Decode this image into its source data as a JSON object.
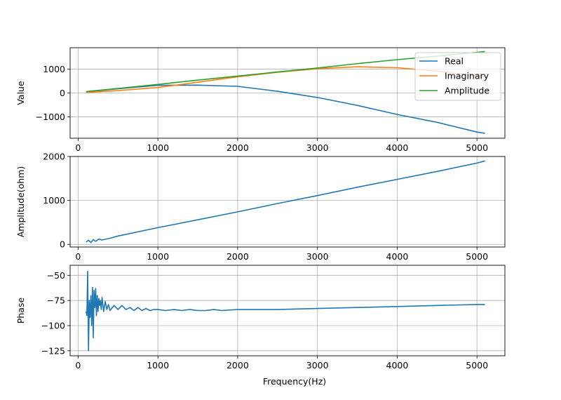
{
  "chart_data": [
    {
      "type": "line",
      "ylabel": "Value",
      "xlim": [
        -100,
        5350
      ],
      "ylim": [
        -1900,
        1900
      ],
      "xticks": [
        {
          "value": 0,
          "label": "0"
        },
        {
          "value": 1000,
          "label": "1000"
        },
        {
          "value": 2000,
          "label": "2000"
        },
        {
          "value": 3000,
          "label": "3000"
        },
        {
          "value": 4000,
          "label": "4000"
        },
        {
          "value": 5000,
          "label": "5000"
        }
      ],
      "yticks": [
        {
          "value": -1000,
          "label": "−1000"
        },
        {
          "value": 0,
          "label": "0"
        },
        {
          "value": 1000,
          "label": "1000"
        }
      ],
      "grid": true,
      "legend": "upper-right",
      "series": [
        {
          "name": "Real",
          "color": "#1f77b4",
          "x": [
            100,
            500,
            1000,
            1500,
            2000,
            2500,
            3000,
            3500,
            4000,
            4500,
            5000,
            5100
          ],
          "y": [
            50,
            180,
            320,
            330,
            280,
            70,
            -190,
            -520,
            -900,
            -1230,
            -1640,
            -1690
          ]
        },
        {
          "name": "Imaginary",
          "color": "#ff7f0e",
          "x": [
            100,
            500,
            1000,
            1500,
            2000,
            2500,
            3000,
            3500,
            4000,
            4500,
            5000,
            5100
          ],
          "y": [
            20,
            100,
            230,
            450,
            680,
            870,
            1020,
            1100,
            1060,
            920,
            720,
            680
          ]
        },
        {
          "name": "Amplitude",
          "color": "#2ca02c",
          "x": [
            100,
            500,
            1000,
            1500,
            2000,
            2500,
            3000,
            3500,
            4000,
            4500,
            5000,
            5100
          ],
          "y": [
            60,
            190,
            360,
            540,
            710,
            880,
            1050,
            1230,
            1400,
            1550,
            1710,
            1740
          ]
        }
      ]
    },
    {
      "type": "line",
      "ylabel": "Amplitude(ohm)",
      "xlim": [
        -100,
        5350
      ],
      "ylim": [
        -60,
        2000
      ],
      "xticks": [
        {
          "value": 0,
          "label": "0"
        },
        {
          "value": 1000,
          "label": "1000"
        },
        {
          "value": 2000,
          "label": "2000"
        },
        {
          "value": 3000,
          "label": "3000"
        },
        {
          "value": 4000,
          "label": "4000"
        },
        {
          "value": 5000,
          "label": "5000"
        }
      ],
      "yticks": [
        {
          "value": 0,
          "label": "0"
        },
        {
          "value": 1000,
          "label": "1000"
        },
        {
          "value": 2000,
          "label": "2000"
        }
      ],
      "grid": true,
      "series": [
        {
          "color": "#1f77b4",
          "x": [
            100,
            130,
            160,
            190,
            220,
            260,
            300,
            400,
            500,
            1000,
            1500,
            2000,
            2500,
            3000,
            3500,
            4000,
            4500,
            5000,
            5100
          ],
          "y": [
            50,
            95,
            40,
            110,
            70,
            120,
            100,
            140,
            190,
            380,
            560,
            740,
            930,
            1110,
            1300,
            1480,
            1660,
            1850,
            1900
          ]
        }
      ]
    },
    {
      "type": "line",
      "xlabel": "Frequency(Hz)",
      "ylabel": "Phase",
      "xlim": [
        -100,
        5350
      ],
      "ylim": [
        -130,
        -40
      ],
      "xticks": [
        {
          "value": 0,
          "label": "0"
        },
        {
          "value": 1000,
          "label": "1000"
        },
        {
          "value": 2000,
          "label": "2000"
        },
        {
          "value": 3000,
          "label": "3000"
        },
        {
          "value": 4000,
          "label": "4000"
        },
        {
          "value": 5000,
          "label": "5000"
        }
      ],
      "yticks": [
        {
          "value": -125,
          "label": "−125"
        },
        {
          "value": -100,
          "label": "−100"
        },
        {
          "value": -75,
          "label": "−75"
        },
        {
          "value": -50,
          "label": "−50"
        }
      ],
      "grid": true,
      "series": [
        {
          "color": "#1f77b4",
          "x": [
            100,
            110,
            120,
            130,
            140,
            150,
            160,
            170,
            180,
            190,
            200,
            210,
            220,
            230,
            240,
            250,
            260,
            270,
            280,
            290,
            300,
            320,
            340,
            360,
            380,
            400,
            450,
            500,
            550,
            600,
            650,
            700,
            750,
            800,
            850,
            900,
            950,
            1000,
            1100,
            1200,
            1300,
            1400,
            1500,
            1600,
            1700,
            1800,
            2000,
            2500,
            3000,
            3500,
            4000,
            4500,
            5000,
            5100
          ],
          "y": [
            -86,
            -90,
            -46,
            -125,
            -75,
            -92,
            -70,
            -100,
            -62,
            -112,
            -65,
            -82,
            -63,
            -90,
            -70,
            -86,
            -73,
            -80,
            -75,
            -84,
            -72,
            -86,
            -76,
            -84,
            -79,
            -85,
            -80,
            -84,
            -80,
            -84,
            -82,
            -85,
            -82,
            -85,
            -83,
            -85,
            -84,
            -84,
            -85,
            -84,
            -85,
            -84,
            -85,
            -85,
            -84,
            -85,
            -84,
            -84,
            -83,
            -82,
            -81,
            -80,
            -79,
            -79
          ]
        }
      ]
    }
  ]
}
